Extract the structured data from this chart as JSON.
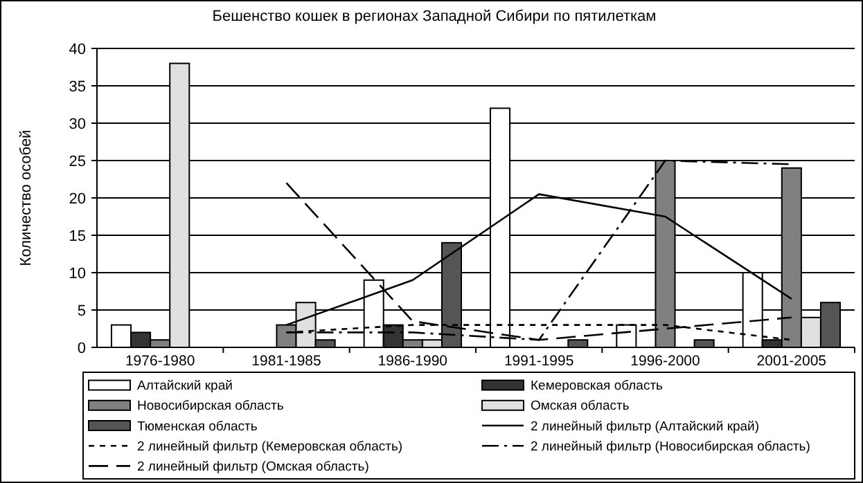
{
  "chart_data": {
    "type": "bar",
    "title": "Бешенство кошек в регионах Западной Сибири по пятилеткам",
    "ylabel": "Количество особей",
    "categories": [
      "1976-1980",
      "1981-1985",
      "1986-1990",
      "1991-1995",
      "1996-2000",
      "2001-2005"
    ],
    "series": [
      {
        "name": "Алтайский край",
        "color": "#ffffff",
        "values": [
          3,
          null,
          9,
          32,
          3,
          10
        ]
      },
      {
        "name": "Кемеровская область",
        "color": "#333333",
        "values": [
          2,
          null,
          3,
          null,
          null,
          1
        ]
      },
      {
        "name": "Новосибирская область",
        "color": "#808080",
        "values": [
          1,
          3,
          1,
          null,
          25,
          24
        ]
      },
      {
        "name": "Омская область",
        "color": "#e0e0e0",
        "values": [
          38,
          6,
          1,
          null,
          null,
          4
        ]
      },
      {
        "name": "Тюменская область",
        "color": "#555555",
        "values": [
          null,
          1,
          14,
          1,
          1,
          6
        ]
      },
      {
        "name": "2 линейный фильтр (Алтайский край)",
        "type": "line",
        "line_style": "solid",
        "color": "#000000",
        "values": [
          null,
          3,
          9,
          20.5,
          17.5,
          6.5
        ]
      },
      {
        "name": "2 линейный фильтр (Кемеровская область)",
        "type": "line",
        "line_style": "dashed",
        "color": "#000000",
        "values": [
          null,
          2,
          3,
          3,
          3,
          1
        ]
      },
      {
        "name": "2 линейный фильтр (Новосибирская область)",
        "type": "line",
        "line_style": "dashdot",
        "color": "#000000",
        "values": [
          null,
          2,
          2,
          1,
          25,
          24.5
        ]
      },
      {
        "name": "2 линейный фильтр (Омская область)",
        "type": "line",
        "line_style": "longdash",
        "color": "#000000",
        "values": [
          null,
          22,
          3.5,
          1,
          2.5,
          4
        ]
      }
    ],
    "ylim": [
      0,
      40
    ],
    "yticks": [
      0,
      5,
      10,
      15,
      20,
      25,
      30,
      35,
      40
    ],
    "grid": "y",
    "legend": "bottom"
  }
}
